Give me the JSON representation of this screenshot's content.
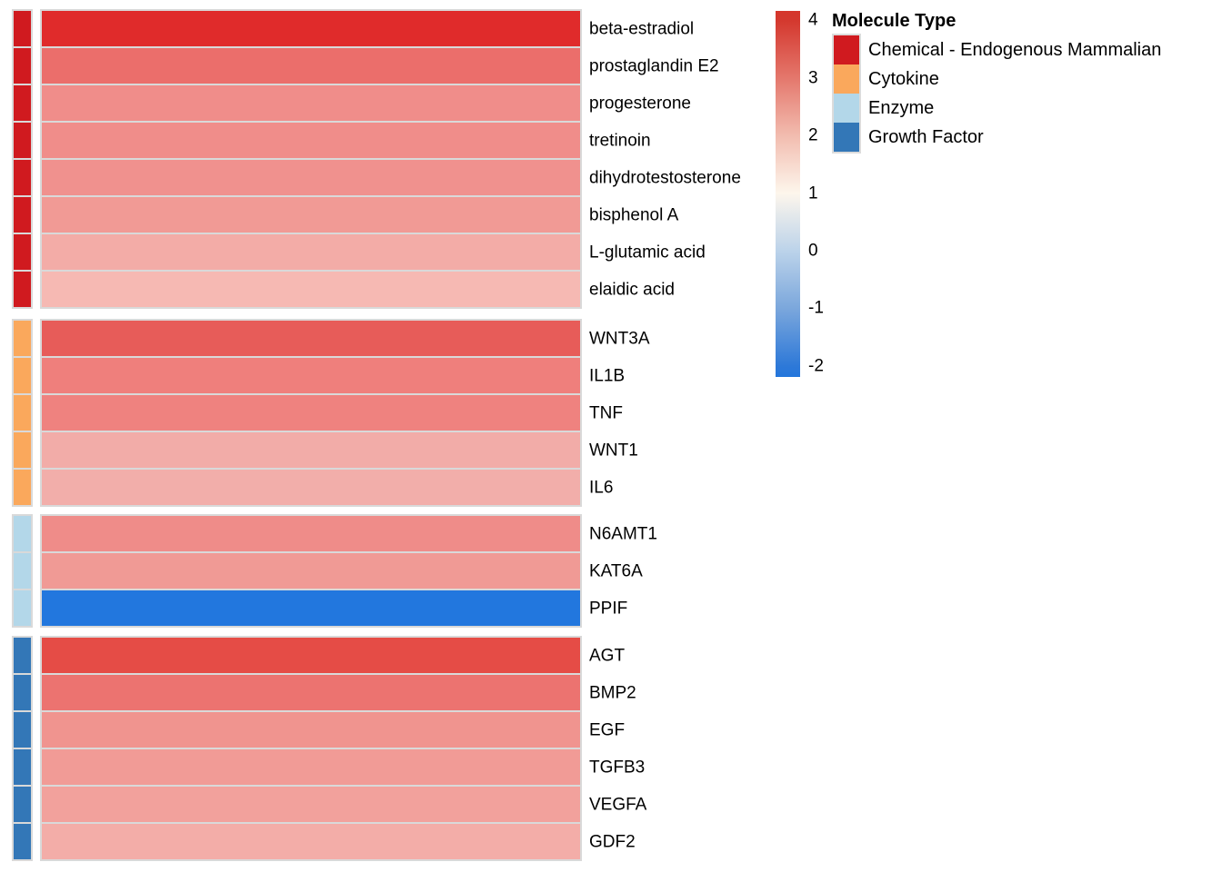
{
  "chart_data": {
    "type": "heatmap",
    "orientation": "single-column heatmap with row annotation strip",
    "groups": [
      {
        "molecule_type": "Chemical - Endogenous Mammalian",
        "rows": [
          {
            "label": "beta-estradiol",
            "value_estimate": 4.2,
            "color": "#E02B2B"
          },
          {
            "label": "prostaglandin E2",
            "value_estimate": 2.9,
            "color": "#EB6E6B"
          },
          {
            "label": "progesterone",
            "value_estimate": 2.6,
            "color": "#F08D8A"
          },
          {
            "label": "tretinoin",
            "value_estimate": 2.6,
            "color": "#F08D8A"
          },
          {
            "label": "dihydrotestosterone",
            "value_estimate": 2.5,
            "color": "#F0918E"
          },
          {
            "label": "bisphenol A",
            "value_estimate": 2.4,
            "color": "#F19A95"
          },
          {
            "label": "L-glutamic acid",
            "value_estimate": 2.1,
            "color": "#F3ACA7"
          },
          {
            "label": "elaidic acid",
            "value_estimate": 1.9,
            "color": "#F6B9B3"
          }
        ]
      },
      {
        "molecule_type": "Cytokine",
        "rows": [
          {
            "label": "WNT3A",
            "value_estimate": 3.2,
            "color": "#E75C59"
          },
          {
            "label": "IL1B",
            "value_estimate": 2.7,
            "color": "#EF7F7C"
          },
          {
            "label": "TNF",
            "value_estimate": 2.7,
            "color": "#EF827F"
          },
          {
            "label": "WNT1",
            "value_estimate": 2.1,
            "color": "#F2ACA8"
          },
          {
            "label": "IL6",
            "value_estimate": 2.0,
            "color": "#F2AEAA"
          }
        ]
      },
      {
        "molecule_type": "Enzyme",
        "rows": [
          {
            "label": "N6AMT1",
            "value_estimate": 2.6,
            "color": "#EF8C89"
          },
          {
            "label": "KAT6A",
            "value_estimate": 2.4,
            "color": "#F09A95"
          },
          {
            "label": "PPIF",
            "value_estimate": -2.1,
            "color": "#2277DE"
          }
        ]
      },
      {
        "molecule_type": "Growth Factor",
        "rows": [
          {
            "label": "AGT",
            "value_estimate": 3.4,
            "color": "#E54C46"
          },
          {
            "label": "BMP2",
            "value_estimate": 2.9,
            "color": "#EC7370"
          },
          {
            "label": "EGF",
            "value_estimate": 2.4,
            "color": "#F0948F"
          },
          {
            "label": "TGFB3",
            "value_estimate": 2.3,
            "color": "#F19B96"
          },
          {
            "label": "VEGFA",
            "value_estimate": 2.2,
            "color": "#F2A19C"
          },
          {
            "label": "GDF2",
            "value_estimate": 2.1,
            "color": "#F3ADA8"
          }
        ]
      }
    ],
    "molecule_type_colors": {
      "Chemical - Endogenous Mammalian": "#D01A1F",
      "Cytokine": "#FAA85C",
      "Enzyme": "#B3D7E9",
      "Growth Factor": "#3377B7"
    },
    "colorbar": {
      "tick_labels": [
        "4",
        "3",
        "2",
        "1",
        "0",
        "-1",
        "-2"
      ],
      "tick_values": [
        4,
        3,
        2,
        1,
        0,
        -1,
        -2
      ],
      "value_top": 4.16,
      "value_bottom": -2.19,
      "gradient_stops": [
        {
          "value": 4.16,
          "color": "#D5362B"
        },
        {
          "value": 4,
          "color": "#D4382E"
        },
        {
          "value": 3,
          "color": "#E4776C"
        },
        {
          "value": 2,
          "color": "#F2BCAF"
        },
        {
          "value": 1,
          "color": "#FDF6EC"
        },
        {
          "value": 0,
          "color": "#BCD3EA"
        },
        {
          "value": -1,
          "color": "#7BA7DC"
        },
        {
          "value": -2,
          "color": "#2E79D8"
        },
        {
          "value": -2.19,
          "color": "#2376DC"
        }
      ]
    },
    "legend": {
      "title": "Molecule Type",
      "items": [
        {
          "label": "Chemical - Endogenous Mammalian",
          "color": "#D01A1F"
        },
        {
          "label": "Cytokine",
          "color": "#FAA85C"
        },
        {
          "label": "Enzyme",
          "color": "#B3D7E9"
        },
        {
          "label": "Growth Factor",
          "color": "#3377B7"
        }
      ]
    }
  }
}
